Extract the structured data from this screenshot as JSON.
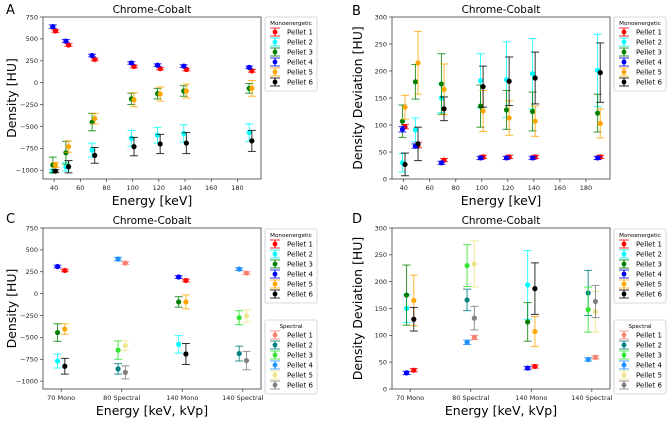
{
  "chart_data": [
    {
      "panel_label": "A",
      "type": "scatter",
      "errorbars": true,
      "title": "Chrome-Cobalt",
      "xlabel": "Energy [keV]",
      "ylabel": "Density [HU]",
      "x": [
        40,
        50,
        70,
        100,
        120,
        140,
        190
      ],
      "xlim": [
        31.5,
        198
      ],
      "ylim": [
        -1100,
        750
      ],
      "xticks": [
        40,
        60,
        80,
        100,
        120,
        140,
        160,
        180
      ],
      "xtick_labels": [
        "40",
        "60",
        "80",
        "100",
        "120",
        "140",
        "160",
        "180"
      ],
      "yticks": [
        750,
        500,
        250,
        0,
        -250,
        -500,
        -750,
        -1000
      ],
      "ytick_labels": [
        "750",
        "500",
        "250",
        "0",
        "−250",
        "−500",
        "−750",
        "−1000"
      ],
      "legends": [
        {
          "title": "Monoenergetic",
          "placement": "outside-right-top"
        }
      ],
      "series": [
        {
          "name": "Pellet 1",
          "group": "Monoenergetic",
          "color": "#ff0000",
          "values": [
            590,
            430,
            265,
            185,
            160,
            150,
            135
          ],
          "errors": [
            15,
            15,
            15,
            15,
            15,
            15,
            15
          ]
        },
        {
          "name": "Pellet 2",
          "group": "Monoenergetic",
          "color": "#00ffff",
          "values": [
            -1010,
            -960,
            -770,
            -635,
            -600,
            -580,
            -570
          ],
          "errors": [
            20,
            50,
            80,
            90,
            90,
            100,
            100
          ]
        },
        {
          "name": "Pellet 3",
          "group": "Monoenergetic",
          "color": "#008000",
          "values": [
            -940,
            -800,
            -450,
            -185,
            -125,
            -95,
            -65
          ],
          "errors": [
            90,
            130,
            100,
            65,
            60,
            60,
            55
          ]
        },
        {
          "name": "Pellet 4",
          "group": "Monoenergetic",
          "color": "#0000ff",
          "values": [
            640,
            475,
            310,
            225,
            200,
            190,
            175
          ],
          "errors": [
            20,
            18,
            15,
            15,
            15,
            15,
            15
          ]
        },
        {
          "name": "Pellet 5",
          "group": "Monoenergetic",
          "color": "#ffa500",
          "values": [
            -940,
            -730,
            -410,
            -195,
            -130,
            -95,
            -65
          ],
          "errors": [
            30,
            65,
            60,
            80,
            80,
            80,
            90
          ]
        },
        {
          "name": "Pellet 6",
          "group": "Monoenergetic",
          "color": "#000000",
          "values": [
            -1010,
            -960,
            -830,
            -730,
            -700,
            -690,
            -665
          ],
          "errors": [
            15,
            70,
            90,
            105,
            110,
            120,
            120
          ]
        }
      ]
    },
    {
      "panel_label": "B",
      "type": "scatter",
      "errorbars": true,
      "title": "Chrome-Cobalt",
      "xlabel": "Energy [keV]",
      "ylabel": "Density Deviation [HU]",
      "x": [
        40,
        50,
        70,
        100,
        120,
        140,
        190
      ],
      "xlim": [
        31,
        198.5
      ],
      "ylim": [
        0,
        300
      ],
      "xticks": [
        40,
        60,
        80,
        100,
        120,
        140,
        160,
        180
      ],
      "xtick_labels": [
        "40",
        "60",
        "80",
        "100",
        "120",
        "140",
        "160",
        "180"
      ],
      "yticks": [
        0,
        50,
        100,
        150,
        200,
        250,
        300
      ],
      "ytick_labels": [
        "0",
        "50",
        "100",
        "150",
        "200",
        "250",
        "300"
      ],
      "legends": [
        {
          "title": "Monoenergetic",
          "placement": "outside-right-top"
        }
      ],
      "series": [
        {
          "name": "Pellet 1",
          "group": "Monoenergetic",
          "color": "#ff0000",
          "values": [
            97,
            63,
            35,
            41,
            41,
            41,
            41
          ],
          "errors": [
            4,
            5,
            3,
            3,
            3,
            3,
            3
          ]
        },
        {
          "name": "Pellet 2",
          "group": "Monoenergetic",
          "color": "#00ffff",
          "values": [
            30,
            91,
            150,
            182,
            184,
            195,
            201
          ],
          "errors": [
            17,
            22,
            27,
            50,
            70,
            65,
            67
          ]
        },
        {
          "name": "Pellet 3",
          "group": "Monoenergetic",
          "color": "#008000",
          "values": [
            107,
            180,
            176,
            135,
            128,
            125,
            122
          ],
          "errors": [
            30,
            32,
            56,
            39,
            36,
            36,
            35
          ]
        },
        {
          "name": "Pellet 4",
          "group": "Monoenergetic",
          "color": "#0000ff",
          "values": [
            92,
            61,
            30,
            39,
            39,
            39,
            39
          ],
          "errors": [
            5,
            4,
            3,
            3,
            3,
            3,
            3
          ]
        },
        {
          "name": "Pellet 5",
          "group": "Monoenergetic",
          "color": "#ffa500",
          "values": [
            133,
            215,
            166,
            126,
            113,
            107,
            103
          ],
          "errors": [
            22,
            58,
            47,
            38,
            32,
            28,
            27
          ]
        },
        {
          "name": "Pellet 6",
          "group": "Monoenergetic",
          "color": "#000000",
          "values": [
            27,
            65,
            130,
            171,
            181,
            187,
            197
          ],
          "errors": [
            21,
            31,
            22,
            38,
            45,
            48,
            55
          ]
        }
      ]
    },
    {
      "panel_label": "C",
      "type": "scatter",
      "errorbars": true,
      "title": "Chrome-Cobalt",
      "xlabel": "Energy [keV, kVp]",
      "ylabel": "Density [HU]",
      "categories": [
        "70 Mono",
        "80 Spectral",
        "140 Mono",
        "140 Spectral"
      ],
      "ylim": [
        -1090,
        750
      ],
      "yticks": [
        750,
        500,
        250,
        0,
        -250,
        -500,
        -750,
        -1000
      ],
      "ytick_labels": [
        "750",
        "500",
        "250",
        "0",
        "−250",
        "−500",
        "−750",
        "−1000"
      ],
      "legends": [
        {
          "title": "Monoenergetic",
          "placement": "outside-right-top"
        },
        {
          "title": "Spectral",
          "placement": "outside-right-bottom"
        }
      ],
      "series": [
        {
          "name": "Pellet 1",
          "group": "Monoenergetic",
          "color": "#ff0000",
          "values": [
            265,
            null,
            150,
            null
          ],
          "errors": [
            15,
            null,
            15,
            null
          ]
        },
        {
          "name": "Pellet 2",
          "group": "Monoenergetic",
          "color": "#00ffff",
          "values": [
            -770,
            null,
            -580,
            null
          ],
          "errors": [
            80,
            null,
            100,
            null
          ]
        },
        {
          "name": "Pellet 3",
          "group": "Monoenergetic",
          "color": "#008000",
          "values": [
            -445,
            null,
            -95,
            null
          ],
          "errors": [
            100,
            null,
            60,
            null
          ]
        },
        {
          "name": "Pellet 4",
          "group": "Monoenergetic",
          "color": "#0000ff",
          "values": [
            310,
            null,
            190,
            null
          ],
          "errors": [
            15,
            null,
            15,
            null
          ]
        },
        {
          "name": "Pellet 5",
          "group": "Monoenergetic",
          "color": "#ffa500",
          "values": [
            -405,
            null,
            -95,
            null
          ],
          "errors": [
            60,
            null,
            80,
            null
          ]
        },
        {
          "name": "Pellet 6",
          "group": "Monoenergetic",
          "color": "#000000",
          "values": [
            -830,
            null,
            -690,
            null
          ],
          "errors": [
            90,
            null,
            120,
            null
          ]
        },
        {
          "name": "Pellet 1",
          "group": "Spectral",
          "color": "#fa8072",
          "values": [
            null,
            350,
            null,
            235
          ],
          "errors": [
            null,
            15,
            null,
            15
          ]
        },
        {
          "name": "Pellet 2",
          "group": "Spectral",
          "color": "#008080",
          "values": [
            null,
            -860,
            null,
            -685
          ],
          "errors": [
            null,
            60,
            null,
            85
          ]
        },
        {
          "name": "Pellet 3",
          "group": "Spectral",
          "color": "#32e632",
          "values": [
            null,
            -645,
            null,
            -275
          ],
          "errors": [
            null,
            105,
            null,
            80
          ]
        },
        {
          "name": "Pellet 4",
          "group": "Spectral",
          "color": "#1e90ff",
          "values": [
            null,
            395,
            null,
            280
          ],
          "errors": [
            null,
            20,
            null,
            15
          ]
        },
        {
          "name": "Pellet 5",
          "group": "Spectral",
          "color": "#f0e68c",
          "values": [
            null,
            -595,
            null,
            -255
          ],
          "errors": [
            null,
            55,
            null,
            70
          ]
        },
        {
          "name": "Pellet 6",
          "group": "Spectral",
          "color": "#808080",
          "values": [
            null,
            -900,
            null,
            -765
          ],
          "errors": [
            null,
            75,
            null,
            105
          ]
        }
      ]
    },
    {
      "panel_label": "D",
      "type": "scatter",
      "errorbars": true,
      "title": "Chrome-Cobalt",
      "xlabel": "Energy [keV, kVp]",
      "ylabel": "Density Deviation [HU]",
      "categories": [
        "70 Mono",
        "80 Spectral",
        "140 Mono",
        "140 Spectral"
      ],
      "ylim": [
        0,
        300
      ],
      "yticks": [
        0,
        50,
        100,
        150,
        200,
        250,
        300
      ],
      "ytick_labels": [
        "0",
        "50",
        "100",
        "150",
        "200",
        "250",
        "300"
      ],
      "legends": [
        {
          "title": "Monoenergetic",
          "placement": "outside-right-top"
        },
        {
          "title": "Spectral",
          "placement": "outside-right-bottom"
        }
      ],
      "series": [
        {
          "name": "Pellet 1",
          "group": "Monoenergetic",
          "color": "#ff0000",
          "values": [
            35,
            null,
            42,
            null
          ],
          "errors": [
            3,
            null,
            3,
            null
          ]
        },
        {
          "name": "Pellet 2",
          "group": "Monoenergetic",
          "color": "#00ffff",
          "values": [
            150,
            null,
            194,
            null
          ],
          "errors": [
            26,
            null,
            64,
            null
          ]
        },
        {
          "name": "Pellet 3",
          "group": "Monoenergetic",
          "color": "#008000",
          "values": [
            175,
            null,
            125,
            null
          ],
          "errors": [
            56,
            null,
            36,
            null
          ]
        },
        {
          "name": "Pellet 4",
          "group": "Monoenergetic",
          "color": "#0000ff",
          "values": [
            30,
            null,
            39,
            null
          ],
          "errors": [
            3,
            null,
            3,
            null
          ]
        },
        {
          "name": "Pellet 5",
          "group": "Monoenergetic",
          "color": "#ffa500",
          "values": [
            165,
            null,
            107,
            null
          ],
          "errors": [
            47,
            null,
            28,
            null
          ]
        },
        {
          "name": "Pellet 6",
          "group": "Monoenergetic",
          "color": "#000000",
          "values": [
            130,
            null,
            187,
            null
          ],
          "errors": [
            22,
            null,
            48,
            null
          ]
        },
        {
          "name": "Pellet 1",
          "group": "Spectral",
          "color": "#fa8072",
          "values": [
            null,
            96,
            null,
            59
          ],
          "errors": [
            null,
            4,
            null,
            3
          ]
        },
        {
          "name": "Pellet 2",
          "group": "Spectral",
          "color": "#008080",
          "values": [
            null,
            166,
            null,
            179
          ],
          "errors": [
            null,
            20,
            null,
            42
          ]
        },
        {
          "name": "Pellet 3",
          "group": "Spectral",
          "color": "#32e632",
          "values": [
            null,
            230,
            null,
            148
          ],
          "errors": [
            null,
            39,
            null,
            42
          ]
        },
        {
          "name": "Pellet 4",
          "group": "Spectral",
          "color": "#1e90ff",
          "values": [
            null,
            87,
            null,
            55
          ],
          "errors": [
            null,
            4,
            null,
            3
          ]
        },
        {
          "name": "Pellet 5",
          "group": "Spectral",
          "color": "#f0e68c",
          "values": [
            null,
            233,
            null,
            144
          ],
          "errors": [
            null,
            43,
            null,
            38
          ]
        },
        {
          "name": "Pellet 6",
          "group": "Spectral",
          "color": "#808080",
          "values": [
            null,
            132,
            null,
            163
          ],
          "errors": [
            null,
            22,
            null,
            30
          ]
        }
      ]
    }
  ]
}
